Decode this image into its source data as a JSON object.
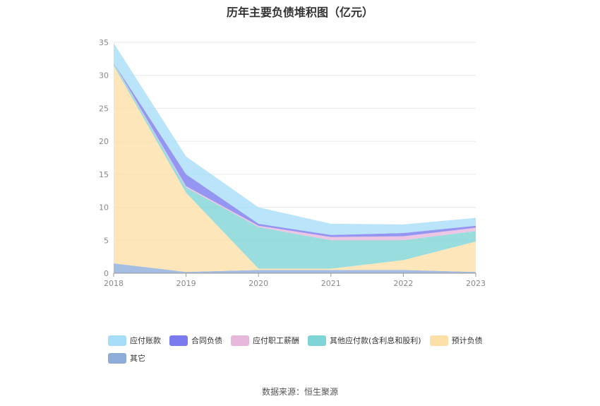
{
  "chart_data": {
    "type": "area",
    "title": "历年主要负债堆积图（亿元）",
    "x": [
      "2018",
      "2019",
      "2020",
      "2021",
      "2022",
      "2023"
    ],
    "ylim": [
      0,
      35
    ],
    "yticks": [
      0,
      5,
      10,
      15,
      20,
      25,
      30,
      35
    ],
    "stacked": true,
    "grid": true,
    "legend_position": "bottom",
    "series": [
      {
        "name": "其它",
        "color": "#8eacd8",
        "values": [
          1.5,
          0.2,
          0.5,
          0.5,
          0.5,
          0.2
        ]
      },
      {
        "name": "预计负债",
        "color": "#fde0a8",
        "values": [
          30.0,
          12.0,
          0.2,
          0.2,
          1.5,
          4.6
        ]
      },
      {
        "name": "其他应付款(含利息和股利)",
        "color": "#7fd4d6",
        "values": [
          0.3,
          0.8,
          6.3,
          4.3,
          3.0,
          1.6
        ]
      },
      {
        "name": "应付职工薪酬",
        "color": "#e8b8dc",
        "values": [
          0.1,
          0.2,
          0.2,
          0.5,
          0.6,
          0.5
        ]
      },
      {
        "name": "合同负债",
        "color": "#7b7bef",
        "values": [
          0.0,
          1.8,
          0.3,
          0.3,
          0.5,
          0.3
        ]
      },
      {
        "name": "应付账款",
        "color": "#a8ddf8",
        "values": [
          3.0,
          2.7,
          2.5,
          1.7,
          1.3,
          1.2
        ]
      }
    ]
  },
  "legend_order": [
    "应付账款",
    "合同负债",
    "应付职工薪酬",
    "其他应付款(含利息和股利)",
    "预计负债",
    "其它"
  ],
  "source": "数据来源：恒生聚源"
}
